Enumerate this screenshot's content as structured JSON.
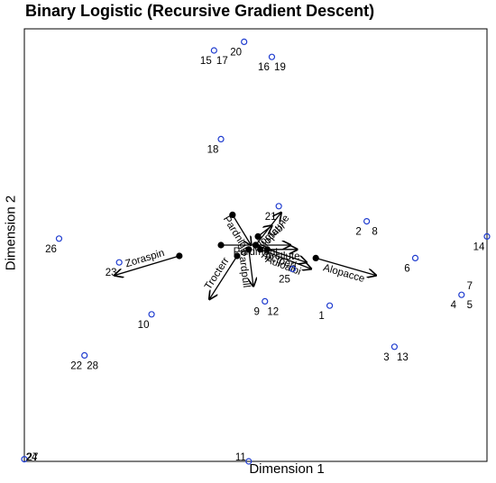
{
  "chart_data": {
    "type": "scatter",
    "title": "Binary Logistic (Recursive Gradient Descent)",
    "xlabel": "Dimension 1",
    "ylabel": "Dimension 2",
    "xlim": [
      -1.0,
      1.0
    ],
    "ylim": [
      -1.0,
      1.0
    ],
    "grid": false,
    "colors": {
      "points": "#1f3ccf",
      "vectors": "#000000",
      "frame": "#000000"
    },
    "points": [
      {
        "label": "1",
        "x": 0.32,
        "y": -0.28
      },
      {
        "label": "2",
        "x": 0.48,
        "y": 0.11
      },
      {
        "label": "3",
        "x": 0.6,
        "y": -0.47
      },
      {
        "label": "4",
        "x": 0.89,
        "y": -0.23
      },
      {
        "label": "5",
        "x": 0.89,
        "y": -0.23
      },
      {
        "label": "6",
        "x": 0.69,
        "y": -0.06
      },
      {
        "label": "7",
        "x": 0.89,
        "y": -0.23
      },
      {
        "label": "8",
        "x": 0.48,
        "y": 0.11
      },
      {
        "label": "9",
        "x": 0.04,
        "y": -0.26
      },
      {
        "label": "10",
        "x": -0.45,
        "y": -0.32
      },
      {
        "label": "11",
        "x": -0.03,
        "y": -1.0
      },
      {
        "label": "12",
        "x": 0.04,
        "y": -0.26
      },
      {
        "label": "13",
        "x": 0.6,
        "y": -0.47
      },
      {
        "label": "14",
        "x": 1.0,
        "y": 0.04
      },
      {
        "label": "15",
        "x": -0.18,
        "y": 0.9
      },
      {
        "label": "16",
        "x": 0.07,
        "y": 0.87
      },
      {
        "label": "17",
        "x": -0.18,
        "y": 0.9
      },
      {
        "label": "18",
        "x": -0.15,
        "y": 0.49
      },
      {
        "label": "19",
        "x": 0.07,
        "y": 0.87
      },
      {
        "label": "20",
        "x": -0.05,
        "y": 0.94
      },
      {
        "label": "21",
        "x": 0.1,
        "y": 0.18
      },
      {
        "label": "22",
        "x": -0.74,
        "y": -0.51
      },
      {
        "label": "23",
        "x": -0.59,
        "y": -0.08
      },
      {
        "label": "24",
        "x": -1.0,
        "y": -0.99
      },
      {
        "label": "25",
        "x": 0.16,
        "y": -0.11
      },
      {
        "label": "26",
        "x": -0.85,
        "y": 0.03
      },
      {
        "label": "27",
        "x": -1.0,
        "y": -0.99
      },
      {
        "label": "28",
        "x": -0.74,
        "y": -0.51
      }
    ],
    "vectors": [
      {
        "name": "Pardnigr",
        "start": [
          -0.1,
          0.14
        ],
        "end": [
          -0.02,
          0.0
        ]
      },
      {
        "name": "Alopcune",
        "start": [
          0.0,
          0.0
        ],
        "end": [
          0.11,
          0.15
        ]
      },
      {
        "name": "Alopfabr",
        "start": [
          0.01,
          0.04
        ],
        "end": [
          0.07,
          0.09
        ]
      },
      {
        "name": "Pardmont",
        "start": [
          -0.15,
          0.0
        ],
        "end": [
          0.15,
          0.0
        ]
      },
      {
        "name": "Arctlute",
        "start": [
          0.05,
          -0.02
        ],
        "end": [
          0.18,
          -0.02
        ]
      },
      {
        "name": "Auloalbi",
        "start": [
          0.02,
          -0.02
        ],
        "end": [
          0.24,
          -0.11
        ]
      },
      {
        "name": "Arctperi",
        "start": [
          0.0,
          0.0
        ],
        "end": [
          0.22,
          -0.08
        ]
      },
      {
        "name": "Alopacce",
        "start": [
          0.26,
          -0.06
        ],
        "end": [
          0.52,
          -0.14
        ]
      },
      {
        "name": "Zoraspin",
        "start": [
          -0.33,
          -0.05
        ],
        "end": [
          -0.61,
          -0.14
        ]
      },
      {
        "name": "Trocterr",
        "start": [
          -0.08,
          -0.05
        ],
        "end": [
          -0.2,
          -0.25
        ]
      },
      {
        "name": "Pardpull",
        "start": [
          -0.03,
          -0.02
        ],
        "end": [
          -0.01,
          -0.19
        ]
      }
    ]
  }
}
